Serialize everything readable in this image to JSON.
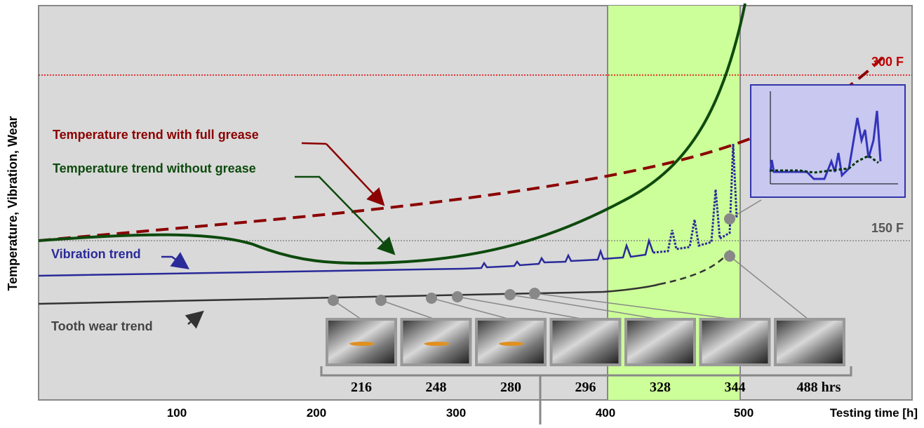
{
  "axis": {
    "y_label": "Temperature, Vibration, Wear",
    "x_label": "Testing time [h]",
    "x_ticks": [
      100,
      200,
      300,
      400,
      500
    ]
  },
  "limits": {
    "high": "300 F",
    "low": "150 F"
  },
  "trends": {
    "full_grease": "Temperature trend with full grease",
    "no_grease": "Temperature trend without grease",
    "vibration": "Vibration trend",
    "tooth_wear": "Tooth wear trend"
  },
  "samples": [
    216,
    248,
    280,
    296,
    328,
    344,
    "488 hrs"
  ]
}
